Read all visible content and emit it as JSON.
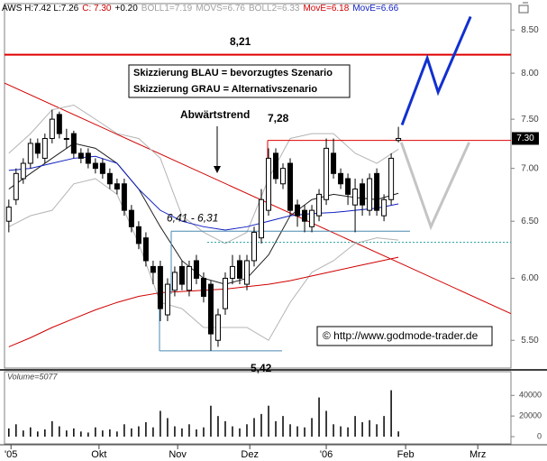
{
  "chart_data": {
    "type": "candlestick",
    "header": [
      {
        "text": "AWS H:7.42 L:7.26",
        "color": "#000000"
      },
      {
        "text": "C: 7.30",
        "color": "#d00000"
      },
      {
        "text": "+0.20",
        "color": "#000000"
      },
      {
        "text": "BOLL1=7.19",
        "color": "#a0a0a0"
      },
      {
        "text": "MOVS=6.76",
        "color": "#a0a0a0"
      },
      {
        "text": "BOLL2=6.33",
        "color": "#a0a0a0"
      },
      {
        "text": "MovE=6.18",
        "color": "#d00000"
      },
      {
        "text": "MovE=6.66",
        "color": "#1020c0"
      }
    ],
    "xlim": [
      -0.6,
      69.6
    ],
    "xticks": [
      {
        "value": 0.3,
        "label": "'05"
      },
      {
        "value": 12.5,
        "label": "Okt"
      },
      {
        "value": 23.4,
        "label": "Nov"
      },
      {
        "value": 33.4,
        "label": "Dez"
      },
      {
        "value": 44,
        "label": "'06"
      },
      {
        "value": 55,
        "label": "Feb"
      },
      {
        "value": 65,
        "label": "Mrz"
      }
    ],
    "ylim": [
      5.29,
      8.82
    ],
    "log_scale": true,
    "yticks": [
      {
        "value": 5.5,
        "label": "5.50"
      },
      {
        "value": 6,
        "label": "6.00"
      },
      {
        "value": 6.5,
        "label": "6.50"
      },
      {
        "value": 7,
        "label": "7.00"
      },
      {
        "value": 7.5,
        "label": "7.50"
      },
      {
        "value": 8,
        "label": "8.00"
      },
      {
        "value": 8.5,
        "label": "8.50"
      }
    ],
    "ohlc": {
      "color": "#000000",
      "open": [
        6.5,
        6.7,
        6.9,
        7.05,
        7.25,
        7.1,
        7.3,
        7.55,
        7.3,
        7.35,
        7.15,
        7.15,
        7.05,
        7.05,
        6.95,
        6.85,
        6.85,
        6.6,
        6.45,
        6.35,
        6.1,
        6.1,
        5.7,
        5.9,
        6.1,
        5.9,
        6.15,
        6.0,
        5.95,
        5.5,
        5.75,
        6.0,
        6.15,
        5.95,
        6.15,
        6.35,
        6.6,
        7.15,
        6.85,
        7.05,
        6.65,
        6.6,
        6.45,
        6.55,
        6.7,
        7.15,
        6.95,
        6.9,
        6.65,
        6.85,
        6.6,
        6.95,
        6.55,
        6.7,
        7.28
      ],
      "high": [
        6.7,
        7.0,
        7.1,
        7.3,
        7.3,
        7.35,
        7.6,
        7.58,
        7.4,
        7.38,
        7.2,
        7.2,
        7.1,
        7.1,
        7.0,
        6.9,
        6.9,
        6.65,
        6.5,
        6.4,
        6.15,
        6.15,
        6.0,
        6.1,
        6.15,
        6.15,
        6.2,
        6.05,
        5.98,
        5.75,
        6.05,
        6.2,
        6.2,
        6.2,
        6.45,
        6.8,
        7.2,
        7.2,
        7.05,
        7.1,
        6.7,
        6.65,
        6.65,
        6.8,
        7.3,
        7.3,
        7.0,
        6.95,
        6.9,
        6.9,
        6.95,
        7.0,
        6.75,
        7.15,
        7.42
      ],
      "low": [
        6.4,
        6.65,
        6.85,
        7.0,
        7.1,
        7.05,
        7.25,
        7.3,
        7.2,
        7.1,
        7.05,
        7.0,
        6.95,
        6.9,
        6.8,
        6.75,
        6.55,
        6.4,
        6.25,
        6.1,
        5.95,
        5.65,
        5.65,
        5.85,
        5.9,
        5.85,
        5.95,
        5.8,
        5.42,
        5.45,
        5.7,
        5.95,
        5.95,
        5.9,
        6.1,
        6.3,
        6.55,
        6.85,
        6.8,
        6.55,
        6.45,
        6.4,
        6.4,
        6.5,
        6.65,
        6.9,
        6.8,
        6.65,
        6.4,
        6.55,
        6.55,
        6.55,
        6.5,
        6.65,
        7.26
      ],
      "close": [
        6.63,
        6.95,
        7.05,
        7.25,
        7.15,
        7.3,
        7.5,
        7.35,
        7.3,
        7.15,
        7.1,
        7.05,
        7.0,
        6.95,
        6.85,
        6.8,
        6.6,
        6.45,
        6.3,
        6.15,
        6.05,
        5.75,
        5.95,
        6.05,
        5.95,
        6.1,
        6.0,
        5.85,
        5.55,
        5.7,
        6.0,
        6.1,
        6.0,
        6.15,
        6.4,
        6.7,
        7.1,
        6.9,
        7.0,
        6.6,
        6.55,
        6.5,
        6.6,
        6.75,
        7.2,
        6.95,
        6.85,
        6.75,
        6.8,
        6.65,
        6.9,
        6.6,
        6.7,
        7.1,
        7.3
      ]
    },
    "overlay_x": [
      0,
      3,
      6,
      9,
      12,
      15,
      18,
      21,
      24,
      27,
      30,
      33,
      36,
      39,
      42,
      45,
      48,
      51,
      54
    ],
    "overlays": [
      {
        "color": "#b4b4b4",
        "values": [
          7.15,
          7.35,
          7.6,
          7.65,
          7.5,
          7.35,
          7.3,
          7.1,
          6.55,
          6.4,
          6.3,
          6.4,
          6.9,
          7.3,
          7.35,
          7.35,
          7.15,
          7.05,
          7.19
        ]
      },
      {
        "color": "#b4b4b4",
        "values": [
          6.45,
          6.55,
          6.6,
          6.85,
          6.9,
          6.75,
          6.3,
          5.8,
          5.75,
          5.6,
          5.6,
          5.6,
          5.5,
          5.8,
          6.05,
          6.15,
          6.3,
          6.35,
          6.33
        ]
      },
      {
        "color": "#202020",
        "values": [
          6.8,
          6.95,
          7.1,
          7.25,
          7.2,
          7.05,
          6.8,
          6.45,
          6.15,
          6.0,
          5.95,
          6.0,
          6.2,
          6.55,
          6.7,
          6.75,
          6.72,
          6.7,
          6.76
        ]
      },
      {
        "color": "#1020c0",
        "values": [
          6.98,
          7.0,
          7.05,
          7.1,
          7.12,
          7.05,
          6.8,
          6.6,
          6.5,
          6.45,
          6.42,
          6.45,
          6.5,
          6.55,
          6.57,
          6.58,
          6.6,
          6.62,
          6.66
        ]
      },
      {
        "color": "#d00000",
        "values": [
          5.45,
          5.52,
          5.6,
          5.67,
          5.74,
          5.8,
          5.85,
          5.88,
          5.89,
          5.9,
          5.91,
          5.93,
          5.95,
          5.98,
          6.02,
          6.06,
          6.1,
          6.14,
          6.18
        ]
      }
    ],
    "levels": [
      {
        "value": 8.21,
        "label": "8,21",
        "color": "#e00000"
      },
      {
        "value": 7.28,
        "label": "7,28",
        "color": "#e00000"
      },
      {
        "value": 5.42,
        "label": "5,42",
        "color": "#4a8ab0"
      }
    ],
    "zone": {
      "values": [
        6.41,
        6.31
      ],
      "label": "6,41 - 6,31",
      "color": "#20a0a0"
    },
    "trendline": {
      "color": "#d00000",
      "x": [
        -0.6,
        69.6
      ],
      "values": [
        7.89,
        5.71
      ]
    },
    "scenario_blue": {
      "color": "#1030d0",
      "x": [
        54.5,
        58,
        59.5,
        64
      ],
      "values": [
        7.44,
        8.17,
        7.79,
        8.66
      ]
    },
    "scenario_gray": {
      "color": "#c4c4c4",
      "x": [
        54.4,
        58.5,
        63.8
      ],
      "values": [
        7.26,
        6.45,
        7.26
      ]
    },
    "notes": [
      "Skizzierung BLAU = bevorzugtes Szenario",
      "Skizzierung GRAU = Alternativszenario"
    ],
    "trend_label": "Abwärtstrend",
    "copyright": "© http://www.godmode-trader.de",
    "last_price": {
      "value": 7.3,
      "label": "7.30"
    },
    "volume": {
      "name": "Volume=5077",
      "color": "#000000",
      "ylim": [
        0,
        63000
      ],
      "yticks": [
        0,
        20000,
        40000
      ],
      "values": [
        8000,
        12000,
        6000,
        9000,
        5000,
        7000,
        15000,
        10000,
        6000,
        8000,
        5000,
        4000,
        9000,
        6000,
        7000,
        5000,
        12000,
        8000,
        10000,
        14000,
        9000,
        25000,
        18000,
        10000,
        8000,
        12000,
        7000,
        9000,
        30000,
        20000,
        15000,
        10000,
        8000,
        12000,
        18000,
        22000,
        30000,
        15000,
        20000,
        12000,
        10000,
        9000,
        18000,
        38000,
        25000,
        12000,
        10000,
        9000,
        20000,
        14000,
        16000,
        12000,
        20000,
        45000,
        5077
      ]
    }
  }
}
